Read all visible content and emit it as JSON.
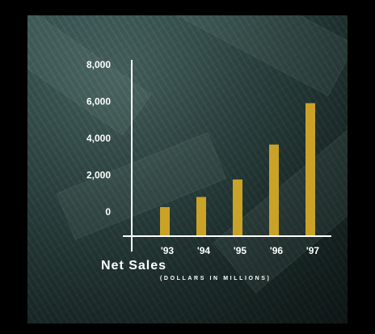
{
  "chart_data": {
    "type": "bar",
    "title": "Net Sales",
    "subtitle": "(DOLLARS IN MILLIONS)",
    "categories": [
      "'93",
      "'94",
      "'95",
      "'96",
      "'97"
    ],
    "values": [
      700,
      1250,
      2200,
      4100,
      6350
    ],
    "yticks": [
      0,
      2000,
      4000,
      6000,
      8000
    ],
    "ytick_labels": [
      "0",
      "2,000",
      "4,000",
      "6,000",
      "8,000"
    ],
    "ylim": [
      0,
      8000
    ],
    "xlabel": "",
    "ylabel": "",
    "grid": false,
    "colors": {
      "bar": "#c9a227",
      "axis": "#ffffff",
      "text": "#ffffff",
      "frame": "#000000",
      "background": "#2c4543"
    }
  }
}
